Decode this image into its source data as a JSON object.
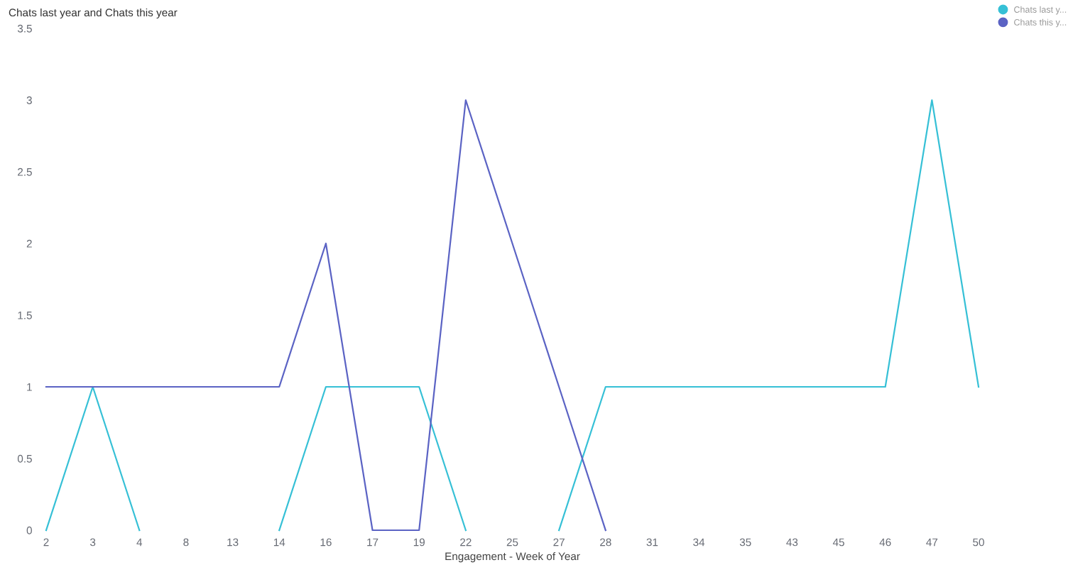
{
  "chart_data": {
    "type": "line",
    "title": "Chats last year and Chats this year",
    "xlabel": "Engagement - Week of Year",
    "categories": [
      "2",
      "3",
      "4",
      "8",
      "13",
      "14",
      "16",
      "17",
      "19",
      "22",
      "25",
      "27",
      "28",
      "31",
      "34",
      "35",
      "43",
      "45",
      "46",
      "47",
      "50"
    ],
    "series": [
      {
        "name": "Chats last y...",
        "color": "#36c0d6",
        "values": [
          0,
          1,
          0,
          null,
          null,
          0,
          1,
          1,
          1,
          0,
          null,
          0,
          1,
          1,
          1,
          1,
          1,
          1,
          1,
          3,
          1
        ]
      },
      {
        "name": "Chats this y...",
        "color": "#5b63c4",
        "values": [
          1,
          1,
          1,
          1,
          1,
          1,
          2,
          0,
          0,
          3,
          2,
          1,
          0,
          null,
          null,
          null,
          null,
          null,
          null,
          null,
          null
        ]
      }
    ],
    "ylim": [
      0,
      3.5
    ],
    "yticks": [
      0,
      0.5,
      1,
      1.5,
      2,
      2.5,
      3,
      3.5
    ],
    "grid": false,
    "legend": "top right",
    "marker": "none",
    "line_style": "solid"
  }
}
